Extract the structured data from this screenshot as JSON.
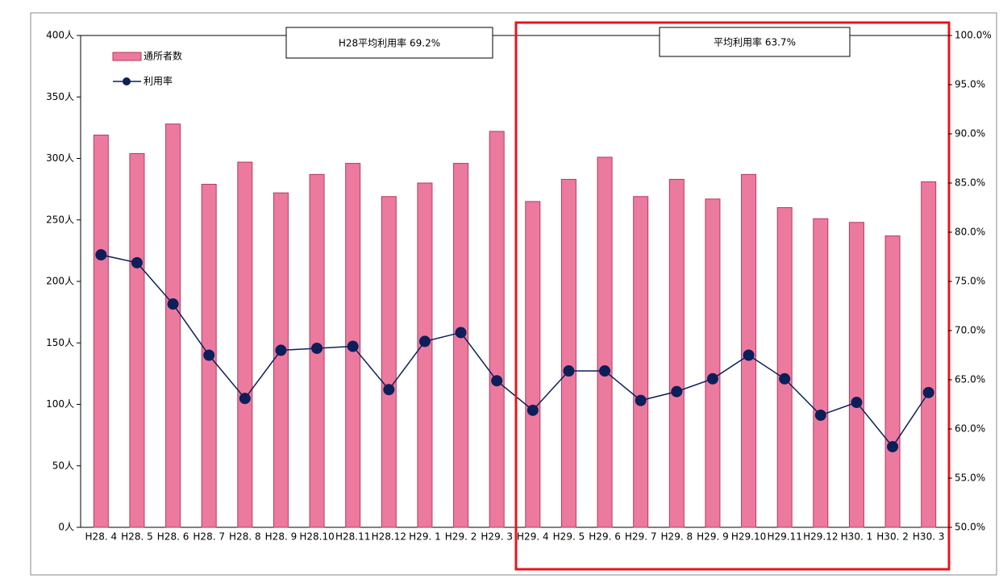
{
  "chart_data": {
    "type": "bar-line",
    "categories": [
      "H28. 4",
      "H28. 5",
      "H28. 6",
      "H28. 7",
      "H28. 8",
      "H28. 9",
      "H28.10",
      "H28.11",
      "H28.12",
      "H29. 1",
      "H29. 2",
      "H29. 3",
      "H29. 4",
      "H29. 5",
      "H29. 6",
      "H29. 7",
      "H29. 8",
      "H29. 9",
      "H29.10",
      "H29.11",
      "H29.12",
      "H30. 1",
      "H30. 2",
      "H30. 3"
    ],
    "series": [
      {
        "name": "通所者数",
        "type": "bar",
        "axis": "y",
        "color": "#ec7a9f",
        "values": [
          319,
          304,
          328,
          279,
          297,
          272,
          287,
          296,
          269,
          280,
          296,
          322,
          265,
          283,
          301,
          269,
          283,
          267,
          287,
          260,
          251,
          248,
          237,
          281
        ]
      },
      {
        "name": "利用率",
        "type": "line",
        "axis": "y2",
        "color": "#0c1f5a",
        "values": [
          77.7,
          76.9,
          72.7,
          67.5,
          63.1,
          68.0,
          68.2,
          68.4,
          64.0,
          68.9,
          69.8,
          64.9,
          61.9,
          65.9,
          65.9,
          62.9,
          63.8,
          65.1,
          67.5,
          65.1,
          61.4,
          62.7,
          58.2,
          63.7
        ]
      }
    ],
    "ylim": [
      0,
      400
    ],
    "yticks": [
      {
        "value": 0,
        "label": "0人"
      },
      {
        "value": 50,
        "label": "50人"
      },
      {
        "value": 100,
        "label": "100人"
      },
      {
        "value": 150,
        "label": "150人"
      },
      {
        "value": 200,
        "label": "200人"
      },
      {
        "value": 250,
        "label": "250人"
      },
      {
        "value": 300,
        "label": "300人"
      },
      {
        "value": 350,
        "label": "350人"
      },
      {
        "value": 400,
        "label": "400人"
      }
    ],
    "y2lim": [
      50,
      100
    ],
    "y2ticks": [
      {
        "value": 50,
        "label": "50.0%"
      },
      {
        "value": 55,
        "label": "55.0%"
      },
      {
        "value": 60,
        "label": "60.0%"
      },
      {
        "value": 65,
        "label": "65.0%"
      },
      {
        "value": 70,
        "label": "70.0%"
      },
      {
        "value": 75,
        "label": "75.0%"
      },
      {
        "value": 80,
        "label": "80.0%"
      },
      {
        "value": 85,
        "label": "85.0%"
      },
      {
        "value": 90,
        "label": "90.0%"
      },
      {
        "value": 95,
        "label": "95.0%"
      },
      {
        "value": 100,
        "label": "100.0%"
      }
    ],
    "annotations": [
      "H28平均利用率 69.2%",
      "平均利用率 63.7%"
    ],
    "legend": "upper left"
  }
}
